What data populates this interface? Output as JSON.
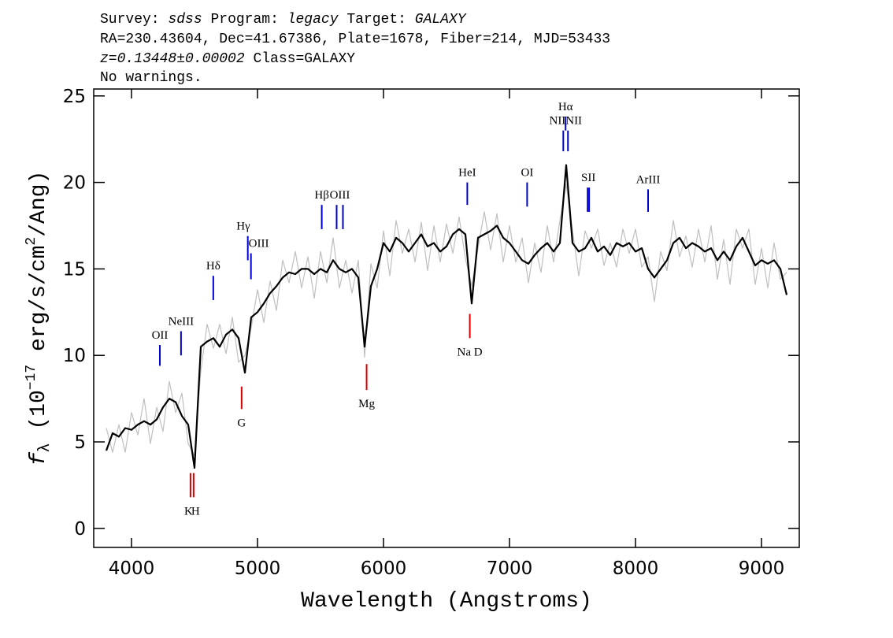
{
  "chart_data": {
    "type": "line",
    "header": [
      [
        "Survey:",
        "sdss",
        "Program:",
        "legacy",
        "Target:",
        "GALAXY"
      ],
      [
        "RA=230.43604, Dec=41.67386, Plate=1678, Fiber=214, MJD=53433"
      ],
      [
        "z=0.13448±0.00002",
        "Class=GALAXY"
      ],
      [
        "No warnings."
      ]
    ],
    "xlabel": "Wavelength (Angstroms)",
    "ylabel": [
      "f",
      "λ",
      "(10",
      "−17",
      "erg/s/cm",
      "2",
      "/Ang)"
    ],
    "xlim": [
      3700,
      9300
    ],
    "ylim": [
      -1.1,
      25.4
    ],
    "xticks": [
      4000,
      5000,
      6000,
      7000,
      8000,
      9000
    ],
    "yticks": [
      0,
      5,
      10,
      15,
      20,
      25
    ],
    "x": [
      3800,
      3850,
      3900,
      3950,
      4000,
      4050,
      4100,
      4150,
      4200,
      4250,
      4300,
      4350,
      4400,
      4450,
      4500,
      4550,
      4600,
      4650,
      4700,
      4750,
      4800,
      4850,
      4900,
      4950,
      5000,
      5050,
      5100,
      5150,
      5200,
      5250,
      5300,
      5350,
      5400,
      5450,
      5500,
      5550,
      5600,
      5650,
      5700,
      5750,
      5800,
      5850,
      5900,
      5950,
      6000,
      6050,
      6100,
      6150,
      6200,
      6250,
      6300,
      6350,
      6400,
      6450,
      6500,
      6550,
      6600,
      6650,
      6700,
      6750,
      6800,
      6850,
      6900,
      6950,
      7000,
      7050,
      7100,
      7150,
      7200,
      7250,
      7300,
      7350,
      7400,
      7450,
      7500,
      7550,
      7600,
      7650,
      7700,
      7750,
      7800,
      7850,
      7900,
      7950,
      8000,
      8050,
      8100,
      8150,
      8200,
      8250,
      8300,
      8350,
      8400,
      8450,
      8500,
      8550,
      8600,
      8650,
      8700,
      8750,
      8800,
      8850,
      8900,
      8950,
      9000,
      9050,
      9100,
      9150,
      9200
    ],
    "series": [
      {
        "color": "#bfbfbf",
        "values": [
          5.8,
          4.4,
          6.0,
          4.4,
          6.7,
          5.4,
          7.5,
          4.9,
          7.0,
          5.6,
          8.5,
          6.7,
          7.8,
          4.9,
          4.2,
          9.1,
          11.8,
          10.4,
          11.8,
          10.1,
          12.2,
          9.6,
          10.0,
          11.6,
          13.8,
          11.9,
          14.3,
          12.6,
          15.5,
          14.2,
          16.0,
          13.9,
          15.7,
          13.3,
          16.0,
          14.2,
          16.8,
          13.9,
          15.5,
          13.6,
          15.5,
          9.9,
          15.3,
          13.9,
          17.2,
          14.6,
          17.8,
          15.9,
          17.3,
          15.4,
          17.7,
          14.9,
          17.5,
          15.4,
          17.6,
          15.9,
          18.0,
          15.6,
          14.0,
          16.2,
          18.3,
          16.1,
          18.2,
          15.4,
          17.5,
          15.4,
          16.8,
          14.2,
          16.5,
          14.8,
          17.5,
          15.4,
          17.8,
          19.9,
          17.2,
          14.6,
          17.2,
          16.2,
          17.3,
          15.2,
          16.5,
          15.1,
          17.3,
          15.9,
          17.3,
          15.1,
          15.7,
          13.1,
          16.0,
          14.9,
          17.8,
          15.7,
          16.9,
          15.1,
          17.3,
          15.4,
          17.5,
          14.4,
          16.7,
          14.1,
          17.3,
          16.2,
          17.3,
          14.1,
          16.2,
          13.9,
          16.5,
          14.4,
          14.8
        ]
      },
      {
        "color": "#000000",
        "values": [
          4.5,
          5.5,
          5.3,
          5.8,
          5.7,
          6.0,
          6.2,
          6.0,
          6.3,
          7.0,
          7.5,
          7.3,
          6.5,
          6.0,
          3.5,
          10.5,
          10.8,
          11.0,
          10.5,
          11.2,
          11.5,
          11.0,
          9.0,
          12.2,
          12.5,
          13.0,
          13.6,
          14.0,
          14.5,
          14.8,
          14.7,
          15.0,
          15.0,
          14.7,
          15.0,
          14.8,
          15.5,
          15.0,
          14.8,
          15.0,
          14.5,
          10.5,
          14.0,
          15.0,
          16.5,
          16.0,
          16.8,
          16.5,
          16.0,
          16.5,
          17.0,
          16.3,
          16.5,
          16.0,
          16.3,
          17.0,
          17.3,
          17.0,
          13.0,
          16.8,
          17.0,
          17.2,
          17.5,
          16.8,
          16.5,
          16.0,
          15.5,
          15.3,
          15.8,
          16.2,
          16.5,
          16.0,
          16.5,
          21.0,
          16.5,
          16.0,
          16.2,
          16.8,
          16.0,
          16.3,
          15.8,
          16.5,
          16.3,
          16.5,
          16.0,
          16.2,
          15.0,
          14.5,
          15.0,
          15.5,
          16.5,
          16.8,
          16.2,
          16.5,
          16.3,
          16.0,
          16.2,
          15.5,
          16.0,
          15.5,
          16.3,
          16.8,
          16.0,
          15.2,
          15.5,
          15.3,
          15.5,
          15.0,
          13.5
        ]
      }
    ],
    "emission_color": "#0000cc",
    "absorption_color": "#dd0000",
    "emission_lines": [
      {
        "label": "OII",
        "x": [
          4225
        ],
        "y": [
          9.4,
          10.6
        ]
      },
      {
        "label": "NeIII",
        "x": [
          4393
        ],
        "y": [
          10.0,
          11.4
        ]
      },
      {
        "label": "Hδ",
        "x": [
          4649
        ],
        "y": [
          13.2,
          14.6
        ]
      },
      {
        "label": "Hγ",
        "x": [
          4923
        ],
        "y": [
          15.5,
          16.9
        ]
      },
      {
        "label": "OIII",
        "x": [
          4948
        ],
        "y": [
          14.4,
          15.9
        ]
      },
      {
        "label": "Hβ",
        "x": [
          5510
        ],
        "y": [
          17.3,
          18.7
        ]
      },
      {
        "label": "OIII",
        "x": [
          5628,
          5678
        ],
        "y": [
          17.3,
          18.7
        ]
      },
      {
        "label": "HeI",
        "x": [
          6665
        ],
        "y": [
          18.7,
          20.0
        ]
      },
      {
        "label": "OI",
        "x": [
          7140
        ],
        "y": [
          18.6,
          20.0
        ]
      },
      {
        "label": "NII",
        "x": [
          7427
        ],
        "y": [
          21.8,
          23.0
        ]
      },
      {
        "label": "Hα",
        "x": [
          7445
        ],
        "y": [
          23.0,
          23.8
        ]
      },
      {
        "label": "NII",
        "x": [
          7464
        ],
        "y": [
          21.8,
          23.0
        ]
      },
      {
        "label": "SII",
        "x": [
          7620,
          7632
        ],
        "y": [
          18.3,
          19.7
        ]
      },
      {
        "label": "ArIII",
        "x": [
          8100
        ],
        "y": [
          18.3,
          19.6
        ]
      }
    ],
    "absorption_lines": [
      {
        "label": "K",
        "x": [
          4468
        ],
        "y": [
          1.8,
          3.2
        ]
      },
      {
        "label": "H",
        "x": [
          4493
        ],
        "y": [
          1.8,
          3.2
        ]
      },
      {
        "label": "G",
        "x": [
          4874
        ],
        "y": [
          6.9,
          8.2
        ]
      },
      {
        "label": "Mg",
        "x": [
          5866
        ],
        "y": [
          8.0,
          9.5
        ]
      },
      {
        "label": "Na D",
        "x": [
          6685
        ],
        "y": [
          11.0,
          12.4
        ]
      }
    ]
  }
}
